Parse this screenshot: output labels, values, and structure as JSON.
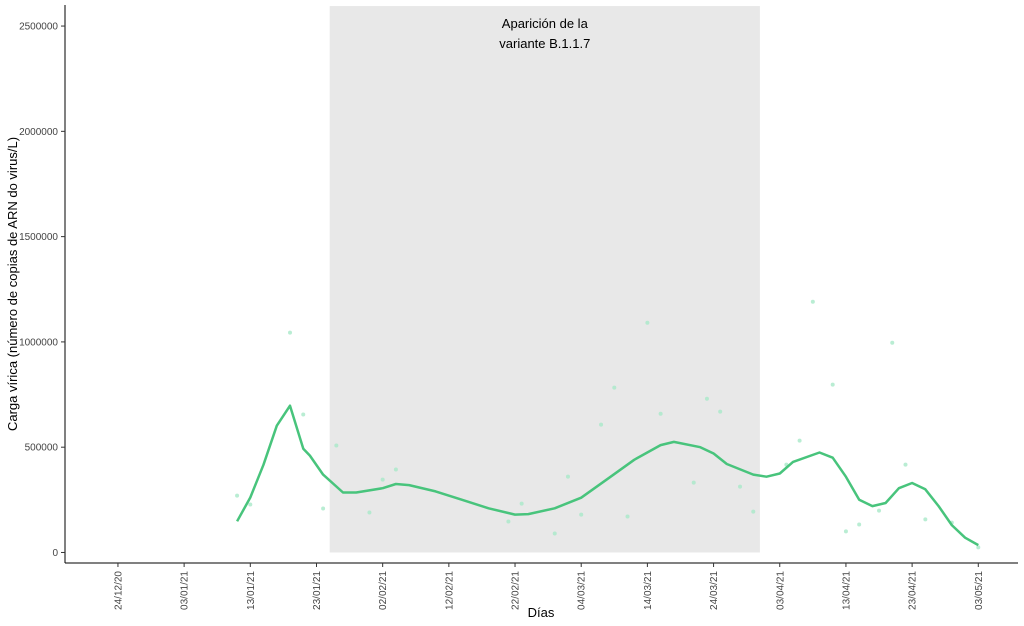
{
  "chart_data": {
    "type": "line",
    "x_label": "Días",
    "y_label": "Carga vírica (número de copias de ARN do virus/L)",
    "xlim": [
      "16/12/20",
      "09/05/21"
    ],
    "ylim": [
      -50000,
      2600000
    ],
    "xticks": [
      "24/12/20",
      "03/01/21",
      "13/01/21",
      "23/01/21",
      "02/02/21",
      "12/02/21",
      "22/02/21",
      "04/03/21",
      "14/03/21",
      "24/03/21",
      "03/04/21",
      "13/04/21",
      "23/04/21",
      "03/05/21"
    ],
    "yticks": [
      0,
      500000,
      1000000,
      1500000,
      2000000,
      2500000
    ],
    "shade": {
      "xlim": [
        "25/01/21",
        "31/03/21"
      ],
      "ylim": [
        0,
        2595000
      ],
      "color": "#e8e8e8",
      "label": [
        "Aparición de la",
        "variante B.1.1.7"
      ]
    },
    "series": [
      {
        "type": "scatter",
        "color": "#a8e8c8",
        "x": [
          "11/01/21",
          "13/01/21",
          "19/01/21",
          "21/01/21",
          "24/01/21",
          "26/01/21",
          "31/01/21",
          "02/02/21",
          "04/02/21",
          "21/02/21",
          "23/02/21",
          "28/02/21",
          "02/03/21",
          "04/03/21",
          "07/03/21",
          "09/03/21",
          "11/03/21",
          "14/03/21",
          "16/03/21",
          "21/03/21",
          "23/03/21",
          "25/03/21",
          "28/03/21",
          "30/03/21",
          "04/04/21",
          "06/04/21",
          "08/04/21",
          "11/04/21",
          "13/04/21",
          "15/04/21",
          "18/04/21",
          "20/04/21",
          "22/04/21",
          "25/04/21",
          "29/04/21",
          "03/05/21"
        ],
        "values": [
          270000,
          228000,
          1044000,
          655000,
          209000,
          508000,
          190000,
          346000,
          394000,
          147000,
          232000,
          90000,
          360000,
          180000,
          607000,
          783000,
          171000,
          1091000,
          659000,
          332000,
          730000,
          669000,
          313000,
          194000,
          417000,
          531000,
          1191000,
          797000,
          100000,
          133000,
          199000,
          996000,
          417000,
          157000,
          142000,
          24000
        ]
      },
      {
        "type": "line",
        "color": "#48c47c",
        "x": [
          "11/01/21",
          "13/01/21",
          "15/01/21",
          "17/01/21",
          "19/01/21",
          "21/01/21",
          "22/01/21",
          "24/01/21",
          "27/01/21",
          "29/01/21",
          "02/02/21",
          "04/02/21",
          "06/02/21",
          "10/02/21",
          "14/02/21",
          "18/02/21",
          "22/02/21",
          "24/02/21",
          "28/02/21",
          "04/03/21",
          "08/03/21",
          "12/03/21",
          "16/03/21",
          "18/03/21",
          "22/03/21",
          "24/03/21",
          "26/03/21",
          "30/03/21",
          "01/04/21",
          "03/04/21",
          "05/04/21",
          "09/04/21",
          "11/04/21",
          "13/04/21",
          "15/04/21",
          "17/04/21",
          "19/04/21",
          "21/04/21",
          "23/04/21",
          "25/04/21",
          "27/04/21",
          "29/04/21",
          "01/05/21",
          "03/05/21"
        ],
        "values": [
          148000,
          261000,
          417000,
          602000,
          697000,
          493000,
          460000,
          370000,
          285000,
          285000,
          305000,
          325000,
          320000,
          290000,
          250000,
          210000,
          180000,
          182000,
          210000,
          260000,
          350000,
          440000,
          510000,
          525000,
          500000,
          470000,
          420000,
          370000,
          360000,
          375000,
          430000,
          475000,
          450000,
          360000,
          250000,
          220000,
          235000,
          305000,
          330000,
          300000,
          220000,
          130000,
          70000,
          35000
        ]
      }
    ]
  }
}
